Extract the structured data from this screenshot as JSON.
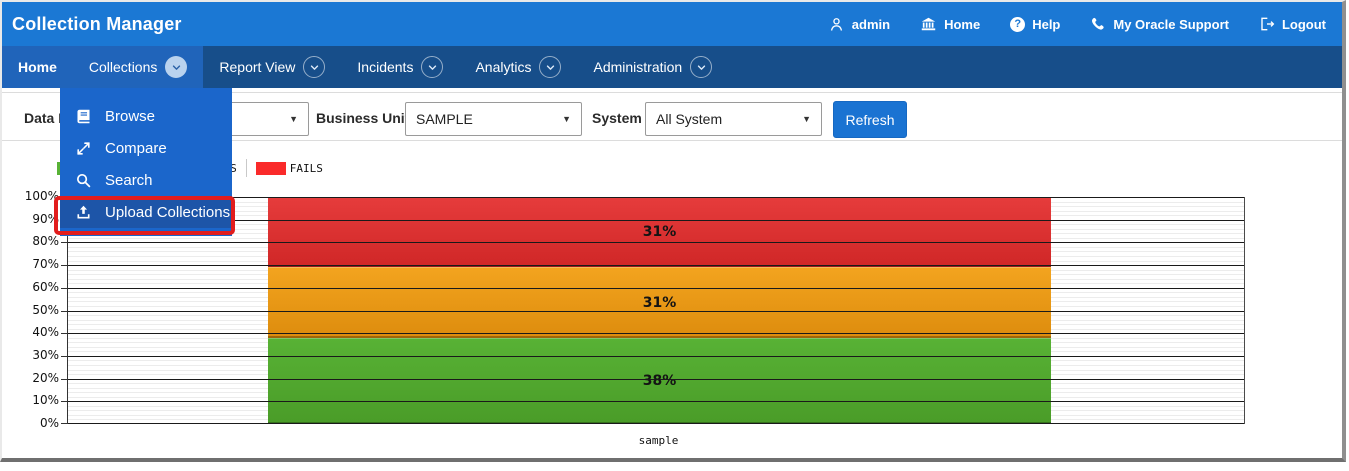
{
  "app": {
    "title": "Collection Manager"
  },
  "header": {
    "items": [
      {
        "label": "admin",
        "icon": "user-icon"
      },
      {
        "label": "Home",
        "icon": "bank-icon"
      },
      {
        "label": "Help",
        "icon": "help-icon"
      },
      {
        "label": "My Oracle Support",
        "icon": "phone-icon"
      },
      {
        "label": "Logout",
        "icon": "logout-icon"
      }
    ]
  },
  "nav": {
    "items": [
      {
        "label": "Home",
        "bold": true,
        "active": true,
        "has_menu": false,
        "menu_open": false
      },
      {
        "label": "Collections",
        "bold": false,
        "active": true,
        "has_menu": true,
        "menu_open": true
      },
      {
        "label": "Report View",
        "bold": false,
        "active": false,
        "has_menu": true,
        "menu_open": false
      },
      {
        "label": "Incidents",
        "bold": false,
        "active": false,
        "has_menu": true,
        "menu_open": false
      },
      {
        "label": "Analytics",
        "bold": false,
        "active": false,
        "has_menu": true,
        "menu_open": false
      },
      {
        "label": "Administration",
        "bold": false,
        "active": false,
        "has_menu": true,
        "menu_open": false
      }
    ]
  },
  "collections_menu": {
    "items": [
      {
        "label": "Browse",
        "icon": "book-icon",
        "highlighted": false
      },
      {
        "label": "Compare",
        "icon": "compare-icon",
        "highlighted": false
      },
      {
        "label": "Search",
        "icon": "search-icon",
        "highlighted": false
      },
      {
        "label": "Upload Collections",
        "icon": "upload-icon",
        "highlighted": true
      }
    ],
    "annotation": {
      "type": "highlight-box",
      "target": "Upload Collections",
      "color": "#e21d1d"
    }
  },
  "filters": {
    "data_range_label": "Data Range",
    "data_range_value": "",
    "business_unit_label": "Business Unit",
    "business_unit_value": "SAMPLE",
    "system_label": "System",
    "system_value": "All System",
    "refresh_label": "Refresh"
  },
  "chart_data": {
    "type": "bar",
    "stacked": true,
    "title": "",
    "xlabel": "",
    "ylabel": "",
    "categories": [
      "sample"
    ],
    "series": [
      {
        "name": "PASSES",
        "values": [
          38
        ],
        "color": "#58b235",
        "color_dark": "#4a9c28",
        "label": "38%",
        "occluded_in_legend": true
      },
      {
        "name": "WARNINGS",
        "values": [
          31
        ],
        "color": "#f3a41f",
        "color_dark": "#dd8c0d",
        "label": "31%",
        "occluded_in_legend": true
      },
      {
        "name": "FAILS",
        "values": [
          31
        ],
        "color": "#e63c3c",
        "color_dark": "#d02727",
        "label": "31%",
        "occluded_in_legend": false
      }
    ],
    "legend_swatch_colors": {
      "PASSES": "#58b235",
      "WARNINGS": "#f3a41f",
      "FAILS": "#fa2a2a"
    },
    "ylim": [
      0,
      100
    ],
    "ytick_major_step": 10,
    "ytick_minor_step": 2,
    "ytick_labels": [
      "0%",
      "10%",
      "20%",
      "30%",
      "40%",
      "50%",
      "60%",
      "70%",
      "80%",
      "90%",
      "100%"
    ],
    "grid": true,
    "legend_position": "top-left"
  },
  "colors": {
    "header_blue": "#1b78d4",
    "nav_blue": "#174e8a",
    "nav_active_blue": "#2064ba",
    "menu_blue": "#1b66cb",
    "menu_highlight_blue": "#1d55a8",
    "annotation_red": "#e21d1d",
    "refresh_blue": "#1a73d2"
  }
}
